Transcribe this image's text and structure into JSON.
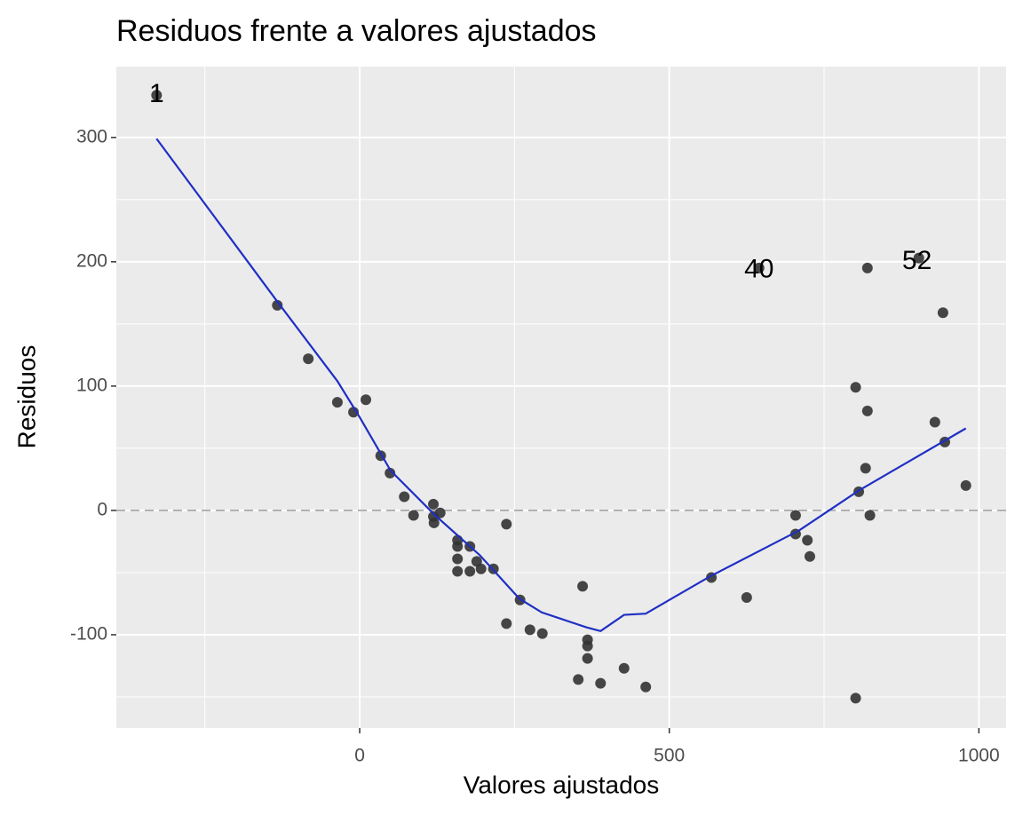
{
  "chart_data": {
    "type": "scatter",
    "title": "Residuos frente a valores ajustados",
    "x_label": "Valores ajustados",
    "y_label": "Residuos",
    "xlim": [
      -393,
      1044
    ],
    "ylim": [
      -175,
      357
    ],
    "xticks": [
      0,
      500,
      1000
    ],
    "yticks": [
      -100,
      0,
      100,
      200,
      300
    ],
    "xminorticks": [
      -250,
      250,
      750
    ],
    "yminorticks": [
      -150,
      -50,
      50,
      150,
      250
    ],
    "grid": true,
    "hline": 0,
    "series": [
      {
        "type": "scatter",
        "color": "#333333",
        "x": [
          -328,
          -133,
          -83,
          -36,
          -10,
          10,
          34,
          49,
          72,
          87,
          119,
          119,
          120,
          130,
          158,
          158,
          158,
          158,
          178,
          178,
          189,
          196,
          216,
          237,
          237,
          259,
          275,
          295,
          353,
          360,
          368,
          368,
          368,
          389,
          427,
          462,
          568,
          625,
          645,
          704,
          704,
          723,
          727,
          801,
          801,
          806,
          817,
          820,
          820,
          824,
          903,
          929,
          942,
          945,
          979
        ],
        "values": [
          334,
          165,
          122,
          87,
          79,
          89,
          44,
          30,
          11,
          -4,
          5,
          -5,
          -10,
          -2,
          -24,
          -29,
          -39,
          -49,
          -29,
          -49,
          -41,
          -47,
          -47,
          -11,
          -91,
          -72,
          -96,
          -99,
          -136,
          -61,
          -104,
          -109,
          -119,
          -139,
          -127,
          -142,
          -54,
          -70,
          195,
          -4,
          -19,
          -24,
          -37,
          -151,
          99,
          15,
          34,
          195,
          80,
          -4,
          203,
          71,
          159,
          55,
          20
        ]
      },
      {
        "type": "line",
        "color": "#1f2fc4",
        "x": [
          -328,
          -133,
          -36,
          0,
          50,
          122,
          194,
          258,
          294,
          366,
          389,
          427,
          462,
          566,
          710,
          806,
          979
        ],
        "values": [
          299,
          168,
          104,
          75,
          32,
          -4,
          -36,
          -71,
          -82,
          -94,
          -97,
          -84,
          -83,
          -53,
          -16,
          16,
          66
        ]
      }
    ],
    "annotations": [
      {
        "text": "1",
        "x": -328,
        "y": 334
      },
      {
        "text": "40",
        "x": 645,
        "y": 193
      },
      {
        "text": "52",
        "x": 900,
        "y": 200
      }
    ]
  }
}
